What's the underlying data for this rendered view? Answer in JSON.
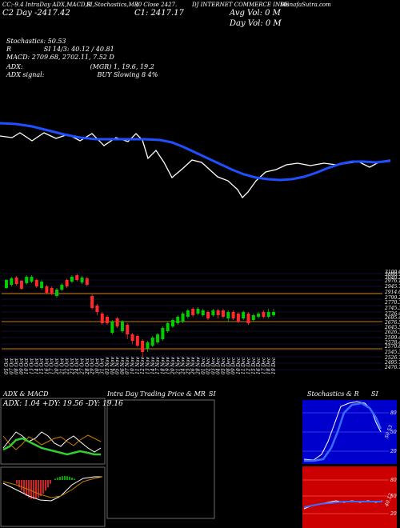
{
  "header": {
    "line1_left": "CC:-9.4 IntraDay ADX,MACD,R",
    "line1_b": "SI,Stochastics,MR",
    "line1_c": "(0 Close 2427.",
    "line1_d": "DJ INTERNET COMMERCE INDE",
    "line1_right": "MunafaSutra.com",
    "line2_left": "C2 Day -2417.42",
    "line2_c": "C1: 2417.17",
    "line2_right": "Avg Vol: 0 M",
    "line3_right": "Day Vol: 0 M"
  },
  "indicators": {
    "stochastics": "Stochastics: 50.53",
    "rsi": "R                SI 14/3: 40.12 / 40.81",
    "macd": "MACD: 2709.68, 2702.11, 7.52  D",
    "adx": "ADX:                                 (MGR) 1, 19.6, 19.2",
    "adx_signal": "ADX signal:                          BUY Slowing 8 4%"
  },
  "price_ticks": [
    "3100.60",
    "3080.72",
    "3040.28",
    "2976.16",
    "2945.7",
    "2914.67",
    "2799.25",
    "2770.33",
    "2745.37",
    "2726.41",
    "2695.47",
    "2676.5",
    "2645.54",
    "2626.36",
    "2599.45",
    "2578.42",
    "2570.66",
    "2545.3",
    "2526.75",
    "2495.79",
    "2476.79"
  ],
  "chart_data": [
    {
      "type": "line",
      "title": "",
      "series": [
        {
          "name": "",
          "color": "#ffffff"
        },
        {
          "name": "",
          "color": "#1f4fff"
        }
      ]
    },
    {
      "type": "candlestick",
      "categories": [
        "05 Oct",
        "07 Oct",
        "08 Oct",
        "09 Oct",
        "10 Oct",
        "13 Oct",
        "14 Oct",
        "15 Oct",
        "16 Oct",
        "17 Oct",
        "20 Oct",
        "21 Oct",
        "22 Oct",
        "23 Oct",
        "24 Oct",
        "27 Oct",
        "28 Oct",
        "29 Oct",
        "30 Oct",
        "31 Oct",
        "03 Nov",
        "04 Nov",
        "05 Nov",
        "06 Nov",
        "07 Nov",
        "10 Nov",
        "11 Nov",
        "12 Nov",
        "13 Nov",
        "14 Nov",
        "17 Nov",
        "18 Nov",
        "19 Nov",
        "20 Nov",
        "21 Nov",
        "24 Nov",
        "25 Nov",
        "26 Nov",
        "28 Nov",
        "01 Dec",
        "02 Dec",
        "03 Dec",
        "04 Dec",
        "05 Dec",
        "08 Dec",
        "09 Dec",
        "10 Dec",
        "11 Dec",
        "12 Dec",
        "15 Dec",
        "16 Dec",
        "17 Dec",
        "18 Dec",
        "19 Dec"
      ],
      "ylim": [
        2476.79,
        3100.6
      ]
    },
    {
      "type": "line",
      "title": "ADX & MACD",
      "header_text": "ADX: 1.04 +DY: 19.56 -DY: 19.16"
    },
    {
      "type": "bar",
      "title": "Intra Day Trading Price & MR SI"
    },
    {
      "type": "line",
      "title": "Stochastics & R SI",
      "yticks": [
        "80",
        "50",
        "20"
      ],
      "lower_yticks": [
        "80",
        "50",
        "20"
      ],
      "lower_label": "40.12"
    }
  ],
  "panel_labels": {
    "adx_macd": "ADX  & MACD",
    "intraday": "Intra  Day Trading Price  & MR",
    "intraday_si": "SI",
    "stoch": "Stochastics & R",
    "stoch_si": "SI",
    "adx_values": "ADX: 1.04  +DY: 19.56  -DY: 19.16",
    "stoch_upper_value": "50.53",
    "rsi_lower_value": "40.12"
  },
  "colors": {
    "background": "#000000",
    "white_line": "#ffffff",
    "blue_line": "#1f4fff",
    "up_candle": "#00cc00",
    "down_candle": "#ff2a2a",
    "stoch_bg": "#0000cc",
    "rsi_bg": "#cc0000",
    "orange_line": "#cc7a00",
    "green_adx": "#33cc33"
  }
}
